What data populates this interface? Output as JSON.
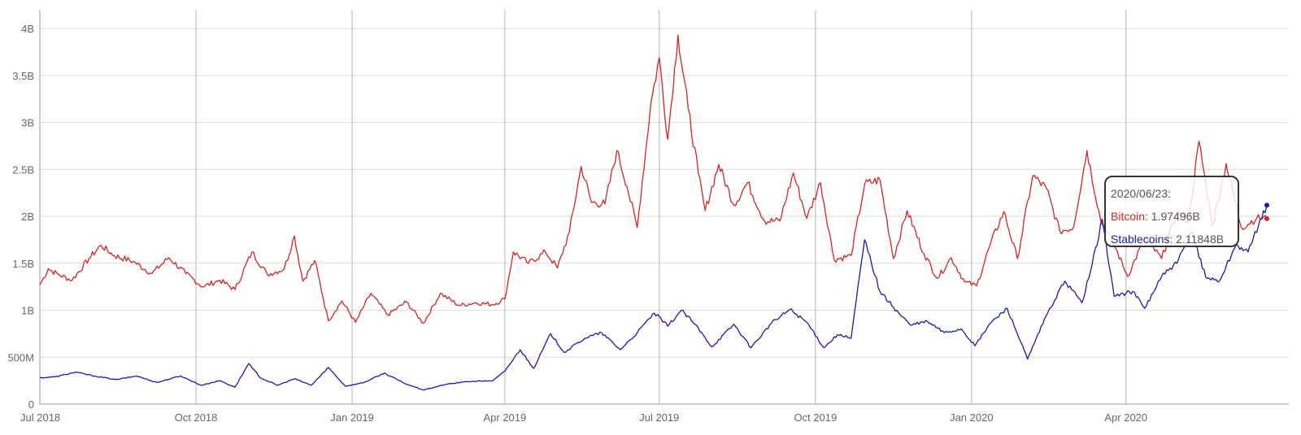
{
  "chart_data": {
    "type": "line",
    "x_tick_labels": [
      "Jul 2018",
      "Oct 2018",
      "Jan 2019",
      "Apr 2019",
      "Jul 2019",
      "Oct 2019",
      "Jan 2020",
      "Apr 2020"
    ],
    "x_range": [
      "2018-07-01",
      "2020-06-23"
    ],
    "y_tick_labels": [
      "0",
      "500M",
      "1B",
      "1.5B",
      "2B",
      "2.5B",
      "3B",
      "3.5B",
      "4B"
    ],
    "ylim": [
      0,
      4200000000
    ],
    "grid": true,
    "colors": {
      "Bitcoin": "#d42424",
      "Stablecoins": "#1a1aa8",
      "grid": "#dcdcdc",
      "grid_vertical": "#b4b4b4"
    },
    "series": [
      {
        "name": "Bitcoin",
        "points": [
          [
            "2018-07-01",
            1270000000
          ],
          [
            "2018-07-06",
            1440000000
          ],
          [
            "2018-07-12",
            1380000000
          ],
          [
            "2018-07-20",
            1320000000
          ],
          [
            "2018-07-30",
            1550000000
          ],
          [
            "2018-08-06",
            1690000000
          ],
          [
            "2018-08-14",
            1580000000
          ],
          [
            "2018-08-25",
            1520000000
          ],
          [
            "2018-09-05",
            1390000000
          ],
          [
            "2018-09-15",
            1560000000
          ],
          [
            "2018-09-25",
            1390000000
          ],
          [
            "2018-10-05",
            1250000000
          ],
          [
            "2018-10-15",
            1320000000
          ],
          [
            "2018-10-24",
            1220000000
          ],
          [
            "2018-11-03",
            1620000000
          ],
          [
            "2018-11-12",
            1380000000
          ],
          [
            "2018-11-22",
            1440000000
          ],
          [
            "2018-11-28",
            1790000000
          ],
          [
            "2018-12-03",
            1310000000
          ],
          [
            "2018-12-10",
            1530000000
          ],
          [
            "2018-12-18",
            890000000
          ],
          [
            "2018-12-26",
            1100000000
          ],
          [
            "2019-01-03",
            870000000
          ],
          [
            "2019-01-12",
            1180000000
          ],
          [
            "2019-01-22",
            950000000
          ],
          [
            "2019-02-02",
            1090000000
          ],
          [
            "2019-02-12",
            860000000
          ],
          [
            "2019-02-22",
            1180000000
          ],
          [
            "2019-03-05",
            1050000000
          ],
          [
            "2019-03-15",
            1080000000
          ],
          [
            "2019-03-25",
            1060000000
          ],
          [
            "2019-04-01",
            1120000000
          ],
          [
            "2019-04-06",
            1620000000
          ],
          [
            "2019-04-15",
            1500000000
          ],
          [
            "2019-04-25",
            1620000000
          ],
          [
            "2019-05-02",
            1450000000
          ],
          [
            "2019-05-09",
            1830000000
          ],
          [
            "2019-05-16",
            2530000000
          ],
          [
            "2019-05-22",
            2150000000
          ],
          [
            "2019-05-30",
            2130000000
          ],
          [
            "2019-06-06",
            2700000000
          ],
          [
            "2019-06-12",
            2320000000
          ],
          [
            "2019-06-18",
            1880000000
          ],
          [
            "2019-06-26",
            3200000000
          ],
          [
            "2019-07-01",
            3690000000
          ],
          [
            "2019-07-06",
            2820000000
          ],
          [
            "2019-07-12",
            3930000000
          ],
          [
            "2019-07-18",
            3150000000
          ],
          [
            "2019-07-24",
            2460000000
          ],
          [
            "2019-07-28",
            2060000000
          ],
          [
            "2019-08-05",
            2550000000
          ],
          [
            "2019-08-14",
            2120000000
          ],
          [
            "2019-08-22",
            2360000000
          ],
          [
            "2019-09-01",
            1950000000
          ],
          [
            "2019-09-10",
            1950000000
          ],
          [
            "2019-09-18",
            2460000000
          ],
          [
            "2019-09-26",
            1980000000
          ],
          [
            "2019-10-04",
            2360000000
          ],
          [
            "2019-10-12",
            1540000000
          ],
          [
            "2019-10-22",
            1580000000
          ],
          [
            "2019-10-30",
            2340000000
          ],
          [
            "2019-11-08",
            2390000000
          ],
          [
            "2019-11-16",
            1550000000
          ],
          [
            "2019-11-24",
            2060000000
          ],
          [
            "2019-12-04",
            1600000000
          ],
          [
            "2019-12-12",
            1340000000
          ],
          [
            "2019-12-20",
            1560000000
          ],
          [
            "2019-12-28",
            1300000000
          ],
          [
            "2020-01-04",
            1260000000
          ],
          [
            "2020-01-12",
            1700000000
          ],
          [
            "2020-01-20",
            2050000000
          ],
          [
            "2020-01-28",
            1550000000
          ],
          [
            "2020-02-06",
            2430000000
          ],
          [
            "2020-02-14",
            2300000000
          ],
          [
            "2020-02-22",
            1840000000
          ],
          [
            "2020-03-01",
            1880000000
          ],
          [
            "2020-03-09",
            2700000000
          ],
          [
            "2020-03-17",
            1960000000
          ],
          [
            "2020-03-25",
            1700000000
          ],
          [
            "2020-04-02",
            1360000000
          ],
          [
            "2020-04-12",
            1770000000
          ],
          [
            "2020-04-22",
            1550000000
          ],
          [
            "2020-05-01",
            2040000000
          ],
          [
            "2020-05-08",
            1950000000
          ],
          [
            "2020-05-14",
            2800000000
          ],
          [
            "2020-05-22",
            1900000000
          ],
          [
            "2020-05-30",
            2560000000
          ],
          [
            "2020-06-08",
            1880000000
          ],
          [
            "2020-06-17",
            1980000000
          ],
          [
            "2020-06-23",
            1974960000
          ]
        ]
      },
      {
        "name": "Stablecoins",
        "points": [
          [
            "2018-07-01",
            280000000
          ],
          [
            "2018-07-10",
            290000000
          ],
          [
            "2018-07-22",
            340000000
          ],
          [
            "2018-08-02",
            300000000
          ],
          [
            "2018-08-15",
            260000000
          ],
          [
            "2018-08-27",
            300000000
          ],
          [
            "2018-09-08",
            230000000
          ],
          [
            "2018-09-22",
            300000000
          ],
          [
            "2018-10-04",
            200000000
          ],
          [
            "2018-10-15",
            250000000
          ],
          [
            "2018-10-24",
            180000000
          ],
          [
            "2018-11-01",
            430000000
          ],
          [
            "2018-11-08",
            280000000
          ],
          [
            "2018-11-18",
            200000000
          ],
          [
            "2018-11-28",
            270000000
          ],
          [
            "2018-12-08",
            200000000
          ],
          [
            "2018-12-18",
            390000000
          ],
          [
            "2018-12-28",
            190000000
          ],
          [
            "2019-01-08",
            230000000
          ],
          [
            "2019-01-20",
            330000000
          ],
          [
            "2019-02-01",
            220000000
          ],
          [
            "2019-02-12",
            150000000
          ],
          [
            "2019-02-25",
            210000000
          ],
          [
            "2019-03-10",
            240000000
          ],
          [
            "2019-03-25",
            250000000
          ],
          [
            "2019-04-01",
            350000000
          ],
          [
            "2019-04-10",
            580000000
          ],
          [
            "2019-04-18",
            380000000
          ],
          [
            "2019-04-28",
            750000000
          ],
          [
            "2019-05-06",
            550000000
          ],
          [
            "2019-05-18",
            700000000
          ],
          [
            "2019-05-28",
            760000000
          ],
          [
            "2019-06-08",
            580000000
          ],
          [
            "2019-06-18",
            760000000
          ],
          [
            "2019-06-28",
            970000000
          ],
          [
            "2019-07-06",
            830000000
          ],
          [
            "2019-07-14",
            1000000000
          ],
          [
            "2019-07-22",
            850000000
          ],
          [
            "2019-08-01",
            610000000
          ],
          [
            "2019-08-14",
            850000000
          ],
          [
            "2019-08-24",
            600000000
          ],
          [
            "2019-09-05",
            860000000
          ],
          [
            "2019-09-16",
            1010000000
          ],
          [
            "2019-09-26",
            870000000
          ],
          [
            "2019-10-06",
            600000000
          ],
          [
            "2019-10-14",
            740000000
          ],
          [
            "2019-10-22",
            700000000
          ],
          [
            "2019-10-30",
            1750000000
          ],
          [
            "2019-11-08",
            1200000000
          ],
          [
            "2019-11-16",
            1030000000
          ],
          [
            "2019-11-26",
            840000000
          ],
          [
            "2019-12-06",
            880000000
          ],
          [
            "2019-12-16",
            760000000
          ],
          [
            "2019-12-26",
            800000000
          ],
          [
            "2020-01-03",
            620000000
          ],
          [
            "2020-01-12",
            860000000
          ],
          [
            "2020-01-22",
            1020000000
          ],
          [
            "2020-02-03",
            480000000
          ],
          [
            "2020-02-14",
            940000000
          ],
          [
            "2020-02-25",
            1310000000
          ],
          [
            "2020-03-06",
            1080000000
          ],
          [
            "2020-03-12",
            1480000000
          ],
          [
            "2020-03-18",
            1970000000
          ],
          [
            "2020-03-25",
            1150000000
          ],
          [
            "2020-04-05",
            1200000000
          ],
          [
            "2020-04-12",
            1020000000
          ],
          [
            "2020-04-22",
            1360000000
          ],
          [
            "2020-05-01",
            1500000000
          ],
          [
            "2020-05-10",
            1830000000
          ],
          [
            "2020-05-18",
            1350000000
          ],
          [
            "2020-05-26",
            1310000000
          ],
          [
            "2020-06-05",
            1700000000
          ],
          [
            "2020-06-12",
            1620000000
          ],
          [
            "2020-06-23",
            2118480000
          ]
        ]
      }
    ]
  },
  "tooltip": {
    "date": "2020/06/23:",
    "bitcoin_label": "Bitcoin",
    "bitcoin_value": ": 1.97496B",
    "stablecoins_label": "Stablecoins",
    "stablecoins_value": ": 2.11848B"
  }
}
